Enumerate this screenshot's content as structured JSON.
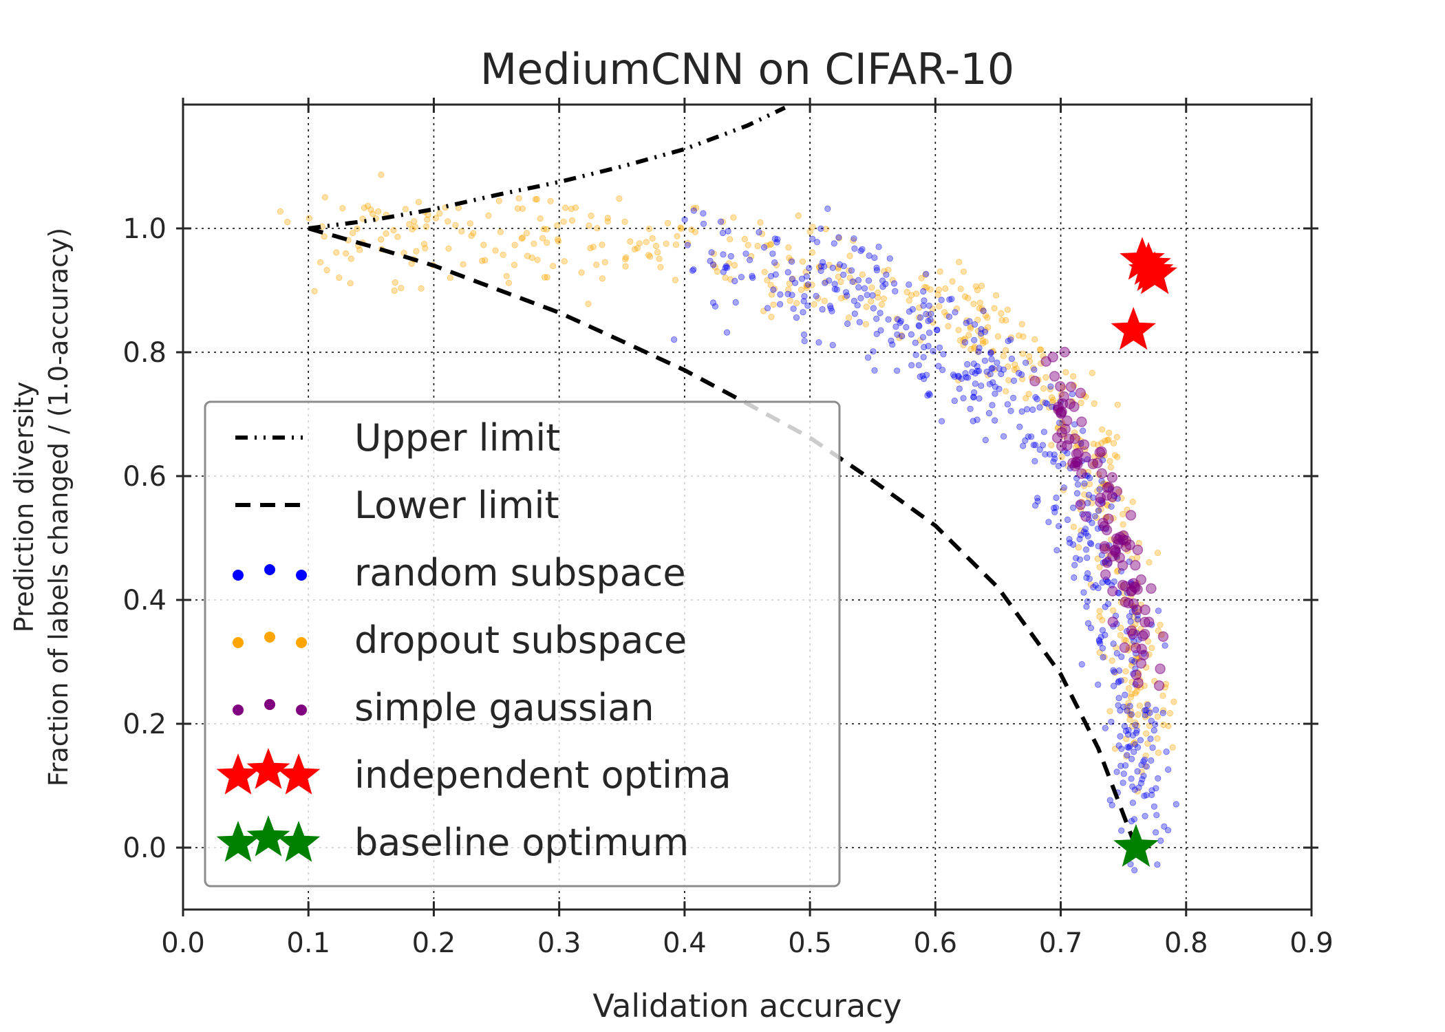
{
  "chart_data": {
    "type": "scatter",
    "title": "MediumCNN on CIFAR-10",
    "xlabel": "Validation accuracy",
    "ylabel_line1": "Prediction diversity",
    "ylabel_line2": "Fraction of labels changed / (1.0-accuracy)",
    "xlim": [
      0.0,
      0.9
    ],
    "ylim": [
      -0.1,
      1.2
    ],
    "x_ticks": [
      0.0,
      0.1,
      0.2,
      0.3,
      0.4,
      0.5,
      0.6,
      0.7,
      0.8,
      0.9
    ],
    "x_tick_labels": [
      "0.0",
      "0.1",
      "0.2",
      "0.3",
      "0.4",
      "0.5",
      "0.6",
      "0.7",
      "0.8",
      "0.9"
    ],
    "y_ticks": [
      0.0,
      0.2,
      0.4,
      0.6,
      0.8,
      1.0
    ],
    "y_tick_labels": [
      "0.0",
      "0.2",
      "0.4",
      "0.6",
      "0.8",
      "1.0"
    ],
    "grid": true,
    "legend_position": "lower-left",
    "colors": {
      "upper": "#000000",
      "lower": "#000000",
      "random": "#0000ff",
      "dropout": "#ffa500",
      "gaussian": "#800080",
      "independent": "#ff0000",
      "baseline": "#008000"
    },
    "series": [
      {
        "id": "upper",
        "name": "Upper limit",
        "kind": "line",
        "style": "dashdot",
        "x": [
          0.1,
          0.15,
          0.2,
          0.25,
          0.3,
          0.35,
          0.4,
          0.45,
          0.48
        ],
        "y": [
          1.0,
          1.013,
          1.031,
          1.054,
          1.075,
          1.1,
          1.128,
          1.166,
          1.195
        ]
      },
      {
        "id": "lower",
        "name": "Lower limit",
        "kind": "line",
        "style": "dashed",
        "x": [
          0.1,
          0.15,
          0.2,
          0.25,
          0.3,
          0.35,
          0.4,
          0.45,
          0.5,
          0.55,
          0.6,
          0.65,
          0.7,
          0.73,
          0.76
        ],
        "y": [
          1.0,
          0.971,
          0.94,
          0.902,
          0.864,
          0.818,
          0.771,
          0.717,
          0.662,
          0.593,
          0.52,
          0.42,
          0.28,
          0.16,
          0.0
        ]
      },
      {
        "id": "random",
        "name": "random subspace",
        "kind": "scatter",
        "band": [
          [
            0.4,
            0.95,
            1.0
          ],
          [
            0.5,
            0.92,
            1.0
          ],
          [
            0.55,
            0.9,
            1.0
          ],
          [
            0.6,
            0.82,
            1.0
          ],
          [
            0.65,
            0.74,
            1.0
          ],
          [
            0.7,
            0.62,
            1.0
          ],
          [
            0.73,
            0.5,
            1.0
          ],
          [
            0.75,
            0.36,
            1.0
          ],
          [
            0.76,
            0.18,
            1.0
          ],
          [
            0.765,
            0.07,
            1.0
          ]
        ],
        "count": 520,
        "spread": [
          0.012,
          0.05
        ]
      },
      {
        "id": "dropout",
        "name": "dropout subspace",
        "kind": "scatter",
        "band": [
          [
            0.1,
            0.99,
            1.0
          ],
          [
            0.2,
            0.99,
            1.0
          ],
          [
            0.3,
            0.985,
            1.0
          ],
          [
            0.4,
            0.97,
            1.0
          ],
          [
            0.5,
            0.94,
            1.0
          ],
          [
            0.6,
            0.88,
            1.0
          ],
          [
            0.65,
            0.82,
            1.0
          ],
          [
            0.7,
            0.72,
            1.0
          ],
          [
            0.73,
            0.6,
            1.0
          ],
          [
            0.75,
            0.46,
            1.0
          ],
          [
            0.76,
            0.3,
            1.0
          ],
          [
            0.765,
            0.15,
            1.0
          ]
        ],
        "count": 560,
        "spread": [
          0.012,
          0.04
        ]
      },
      {
        "id": "gaussian",
        "name": "simple gaussian",
        "kind": "scatter",
        "band": [
          [
            0.69,
            0.78,
            1.0
          ],
          [
            0.71,
            0.68,
            1.0
          ],
          [
            0.73,
            0.58,
            1.0
          ],
          [
            0.75,
            0.46,
            1.0
          ],
          [
            0.76,
            0.38,
            1.0
          ],
          [
            0.775,
            0.28,
            1.0
          ]
        ],
        "count": 110,
        "spread": [
          0.008,
          0.03
        ]
      },
      {
        "id": "independent",
        "name": "independent optima",
        "kind": "star",
        "points": [
          [
            0.758,
            0.835
          ],
          [
            0.765,
            0.948
          ],
          [
            0.77,
            0.94
          ],
          [
            0.772,
            0.93
          ],
          [
            0.775,
            0.925
          ]
        ]
      },
      {
        "id": "baseline",
        "name": "baseline optimum",
        "kind": "star",
        "points": [
          [
            0.76,
            0.0
          ]
        ]
      }
    ]
  }
}
